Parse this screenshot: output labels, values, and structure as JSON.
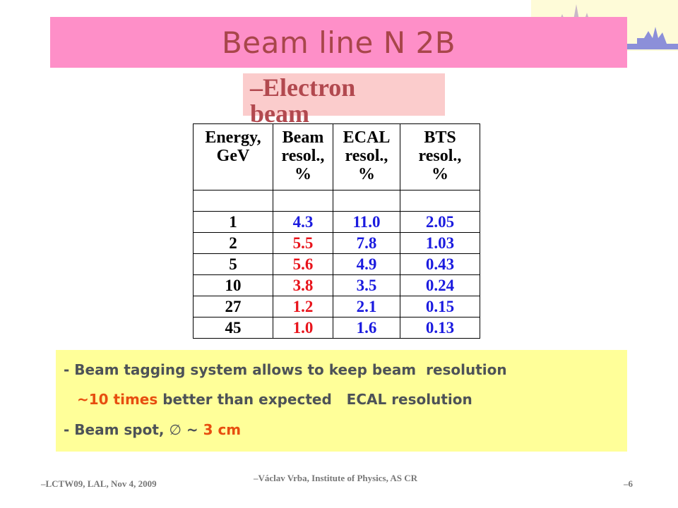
{
  "title": "Beam line N 2B",
  "subtitle": "–Electron beam",
  "table": {
    "headers": [
      [
        "Energy,",
        "GeV"
      ],
      [
        "Beam",
        "resol.,",
        "%"
      ],
      [
        "ECAL",
        "resol.,",
        "%"
      ],
      [
        "BTS",
        "resol.,",
        "%"
      ]
    ],
    "rows": [
      {
        "energy": "1",
        "beam": "4.3",
        "beam_color": "blue",
        "ecal": "11.0",
        "bts": "2.05"
      },
      {
        "energy": "2",
        "beam": "5.5",
        "beam_color": "red",
        "ecal": "7.8",
        "bts": "1.03"
      },
      {
        "energy": "5",
        "beam": "5.6",
        "beam_color": "red",
        "ecal": "4.9",
        "bts": "0.43"
      },
      {
        "energy": "10",
        "beam": "3.8",
        "beam_color": "red",
        "ecal": "3.5",
        "bts": "0.24"
      },
      {
        "energy": "27",
        "beam": "1.2",
        "beam_color": "red",
        "ecal": "2.1",
        "bts": "0.15"
      },
      {
        "energy": "45",
        "beam": "1.0",
        "beam_color": "red",
        "ecal": "1.6",
        "bts": "0.13"
      }
    ]
  },
  "notes": {
    "line1": "- Beam tagging system allows to keep beam  resolution",
    "line2_highlight": "~10 times",
    "line2_rest": " better than expected   ECAL resolution",
    "line3_prefix": "- Beam spot, ",
    "line3_symbol": "∅",
    "line3_mid": " ~ ",
    "line3_highlight": "3 cm"
  },
  "footer": {
    "left": "–LCTW09, LAL, Nov 4, 2009",
    "center": "–Václav Vrba, Institute of Physics, AS CR",
    "right": "–6"
  },
  "colors": {
    "title_bg": "#fe8fc8",
    "title_text": "#a8464a",
    "notes_bg": "#ffff99",
    "highlight": "#e74e0f",
    "blue": "#1b1bdf",
    "red": "#e8141c"
  },
  "icons": {
    "logo": "prague-skyline-logo-icon"
  }
}
